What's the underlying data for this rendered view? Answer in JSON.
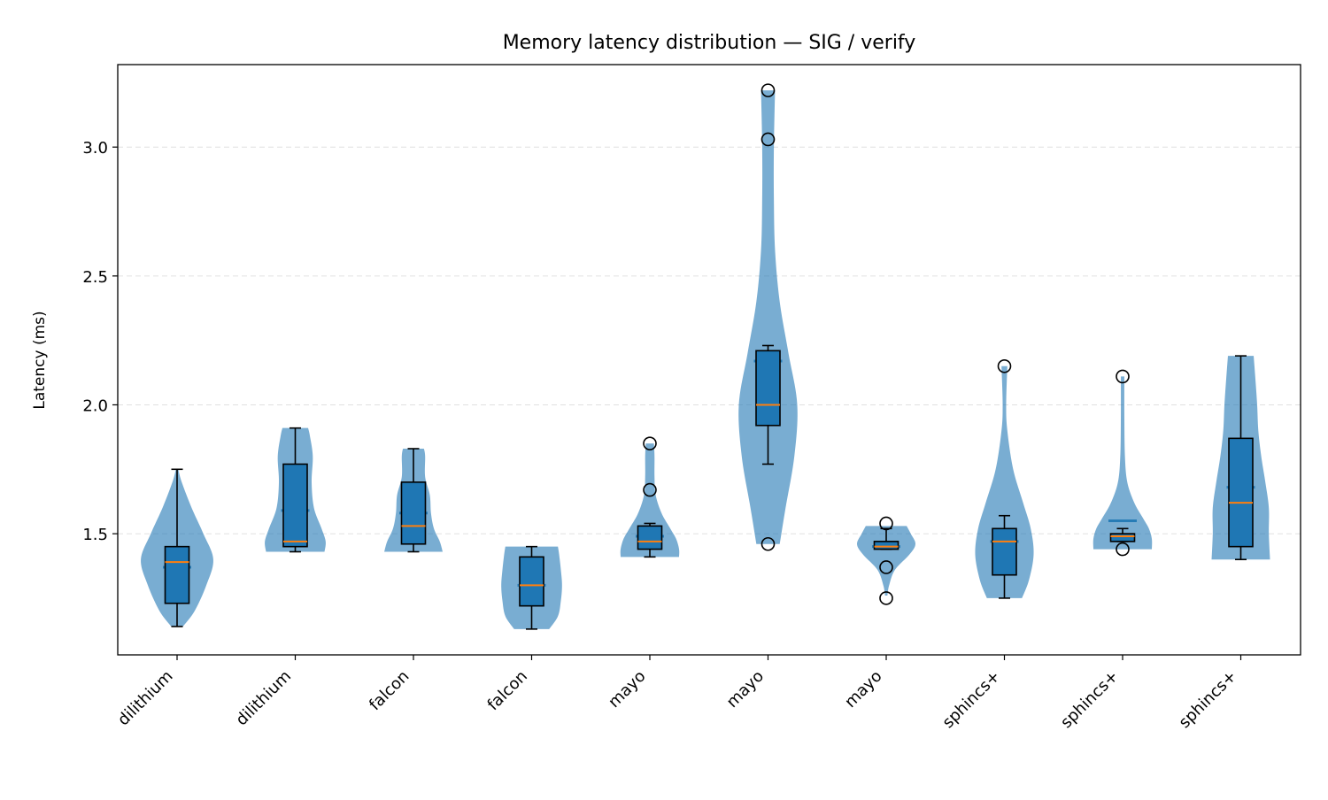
{
  "chart_data": {
    "type": "violin+box",
    "title": "Memory latency distribution — SIG / verify",
    "xlabel": "",
    "ylabel": "Latency (ms)",
    "ylim": [
      1.03,
      3.32
    ],
    "yticks": [
      1.5,
      2.0,
      2.5,
      3.0
    ],
    "ytick_labels": [
      "1.5",
      "2.0",
      "2.5",
      "3.0"
    ],
    "grid": "y-dashed",
    "colors": {
      "violin": "#1f77b4",
      "box_fill": "#1f77b4",
      "median": "#ff7f0e",
      "edge": "#000000"
    },
    "categories": [
      "dilithium",
      "dilithium",
      "falcon",
      "falcon",
      "mayo",
      "mayo",
      "mayo",
      "sphincs+",
      "sphincs+",
      "sphincs+"
    ],
    "groups": [
      {
        "label": "dilithium",
        "box": {
          "whislo": 1.14,
          "q1": 1.23,
          "med": 1.39,
          "q3": 1.45,
          "whishi": 1.75
        },
        "fliers": [],
        "violin_mean": 1.37,
        "violin": {
          "y": [
            1.14,
            1.2,
            1.3,
            1.4,
            1.5,
            1.6,
            1.7,
            1.75
          ],
          "w": [
            0.1,
            0.3,
            0.5,
            0.62,
            0.45,
            0.25,
            0.08,
            0.02
          ]
        }
      },
      {
        "label": "dilithium",
        "box": {
          "whislo": 1.43,
          "q1": 1.45,
          "med": 1.47,
          "q3": 1.77,
          "whishi": 1.91
        },
        "fliers": [],
        "violin_mean": 1.59,
        "violin": {
          "y": [
            1.43,
            1.47,
            1.52,
            1.6,
            1.7,
            1.8,
            1.88,
            1.91
          ],
          "w": [
            0.5,
            0.52,
            0.45,
            0.32,
            0.28,
            0.3,
            0.25,
            0.22
          ]
        }
      },
      {
        "label": "falcon",
        "box": {
          "whislo": 1.43,
          "q1": 1.46,
          "med": 1.53,
          "q3": 1.7,
          "whishi": 1.83
        },
        "fliers": [],
        "violin_mean": 1.58,
        "violin": {
          "y": [
            1.43,
            1.47,
            1.52,
            1.58,
            1.65,
            1.72,
            1.8,
            1.83
          ],
          "w": [
            0.5,
            0.45,
            0.35,
            0.3,
            0.28,
            0.2,
            0.2,
            0.18
          ]
        }
      },
      {
        "label": "falcon",
        "box": {
          "whislo": 1.13,
          "q1": 1.22,
          "med": 1.3,
          "q3": 1.41,
          "whishi": 1.45
        },
        "fliers": [],
        "violin_mean": 1.3,
        "violin": {
          "y": [
            1.13,
            1.18,
            1.24,
            1.3,
            1.36,
            1.42,
            1.45
          ],
          "w": [
            0.3,
            0.45,
            0.5,
            0.52,
            0.5,
            0.47,
            0.45
          ]
        }
      },
      {
        "label": "mayo",
        "box": {
          "whislo": 1.41,
          "q1": 1.44,
          "med": 1.47,
          "q3": 1.53,
          "whishi": 1.54
        },
        "fliers": [
          1.67,
          1.85
        ],
        "violin_mean": 1.49,
        "violin": {
          "y": [
            1.41,
            1.44,
            1.48,
            1.52,
            1.58,
            1.65,
            1.72,
            1.8,
            1.85
          ],
          "w": [
            0.5,
            0.5,
            0.45,
            0.35,
            0.2,
            0.1,
            0.08,
            0.08,
            0.07
          ]
        }
      },
      {
        "label": "mayo",
        "box": {
          "whislo": 1.77,
          "q1": 1.92,
          "med": 2.0,
          "q3": 2.21,
          "whishi": 2.23
        },
        "fliers": [
          1.46,
          3.03,
          3.22
        ],
        "violin_mean": 2.17,
        "violin": {
          "y": [
            1.46,
            1.6,
            1.8,
            2.0,
            2.2,
            2.4,
            2.6,
            2.8,
            3.0,
            3.22
          ],
          "w": [
            0.2,
            0.3,
            0.45,
            0.5,
            0.35,
            0.2,
            0.12,
            0.1,
            0.1,
            0.12
          ]
        }
      },
      {
        "label": "mayo",
        "box": {
          "whislo": 1.44,
          "q1": 1.44,
          "med": 1.45,
          "q3": 1.47,
          "whishi": 1.52
        },
        "fliers": [
          1.25,
          1.37,
          1.54
        ],
        "violin_mean": 1.45,
        "violin": {
          "y": [
            1.26,
            1.3,
            1.36,
            1.42,
            1.46,
            1.5,
            1.53
          ],
          "w": [
            0.02,
            0.05,
            0.15,
            0.4,
            0.5,
            0.42,
            0.35
          ]
        }
      },
      {
        "label": "sphincs+",
        "box": {
          "whislo": 1.25,
          "q1": 1.34,
          "med": 1.47,
          "q3": 1.52,
          "whishi": 1.57
        },
        "fliers": [
          2.15
        ],
        "violin_mean": 1.47,
        "violin": {
          "y": [
            1.25,
            1.32,
            1.42,
            1.52,
            1.62,
            1.75,
            1.9,
            2.0,
            2.15
          ],
          "w": [
            0.3,
            0.42,
            0.5,
            0.45,
            0.32,
            0.15,
            0.05,
            0.03,
            0.05
          ]
        }
      },
      {
        "label": "sphincs+",
        "box": {
          "whislo": 1.47,
          "q1": 1.47,
          "med": 1.49,
          "q3": 1.5,
          "whishi": 1.52
        },
        "fliers": [
          1.44,
          2.11
        ],
        "violin_mean": 1.55,
        "violin": {
          "y": [
            1.44,
            1.48,
            1.52,
            1.56,
            1.62,
            1.7,
            1.8,
            1.95,
            2.11
          ],
          "w": [
            0.5,
            0.5,
            0.45,
            0.35,
            0.2,
            0.08,
            0.04,
            0.03,
            0.03
          ]
        }
      },
      {
        "label": "sphincs+",
        "box": {
          "whislo": 1.4,
          "q1": 1.45,
          "med": 1.62,
          "q3": 1.87,
          "whishi": 2.19
        },
        "fliers": [],
        "violin_mean": 1.68,
        "violin": {
          "y": [
            1.4,
            1.5,
            1.6,
            1.7,
            1.8,
            1.9,
            2.0,
            2.1,
            2.19
          ],
          "w": [
            0.5,
            0.48,
            0.48,
            0.42,
            0.35,
            0.3,
            0.28,
            0.25,
            0.22
          ]
        }
      }
    ]
  }
}
